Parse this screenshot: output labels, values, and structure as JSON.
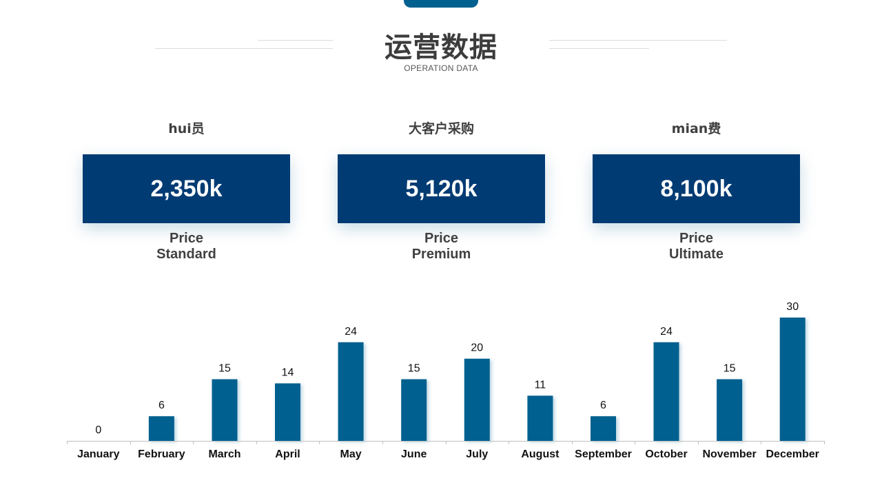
{
  "header": {
    "title": "运营数据",
    "subtitle": "OPERATION DATA"
  },
  "cards": [
    {
      "title": "hui员",
      "value": "2,350k",
      "sub1": "Price",
      "sub2": "Standard"
    },
    {
      "title": "大客户采购",
      "value": "5,120k",
      "sub1": "Price",
      "sub2": "Premium"
    },
    {
      "title": "mian费",
      "value": "8,100k",
      "sub1": "Price",
      "sub2": "Ultimate"
    }
  ],
  "colors": {
    "bar": "#00608f",
    "card": "#003b73",
    "tab": "#00608f"
  },
  "chart_data": {
    "type": "bar",
    "categories": [
      "January",
      "February",
      "March",
      "April",
      "May",
      "June",
      "July",
      "August",
      "September",
      "October",
      "November",
      "December"
    ],
    "values": [
      0,
      6,
      15,
      14,
      24,
      15,
      20,
      11,
      6,
      24,
      15,
      30
    ],
    "title": "",
    "xlabel": "",
    "ylabel": "",
    "ylim": [
      0,
      30
    ],
    "grid": false,
    "data_labels": true
  }
}
